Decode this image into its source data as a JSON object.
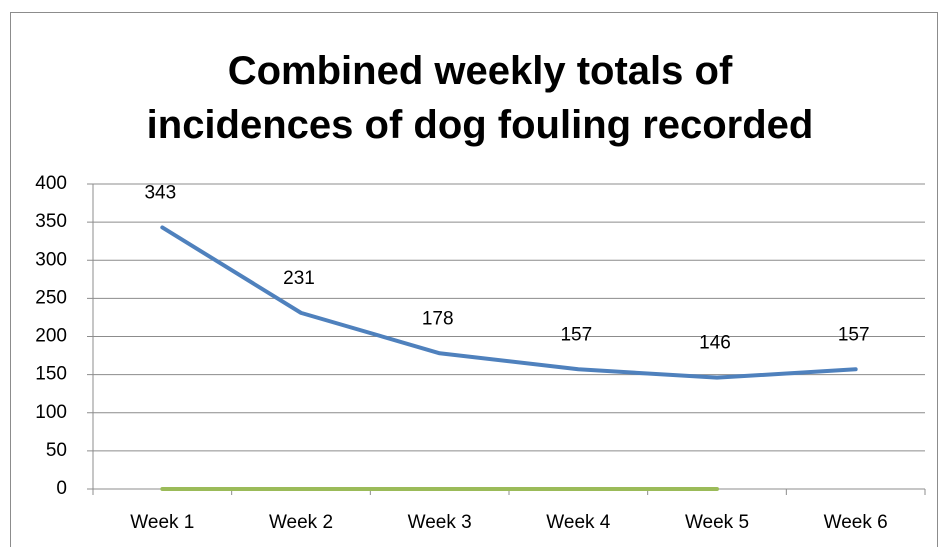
{
  "chart_data": {
    "type": "line",
    "title": "Combined weekly totals of incidences of dog fouling recorded",
    "categories": [
      "Week 1",
      "Week 2",
      "Week 3",
      "Week 4",
      "Week 5",
      "Week 6"
    ],
    "series": [
      {
        "color": "#4f81bd",
        "data_labels": true,
        "values": [
          343,
          231,
          178,
          157,
          146,
          157
        ]
      },
      {
        "color": "#9bbb59",
        "data_labels": false,
        "values": [
          0,
          0,
          0,
          0,
          0,
          null
        ]
      }
    ],
    "ylim": [
      0,
      400
    ],
    "yticks": [
      0,
      50,
      100,
      150,
      200,
      250,
      300,
      350,
      400
    ],
    "grid": true
  }
}
